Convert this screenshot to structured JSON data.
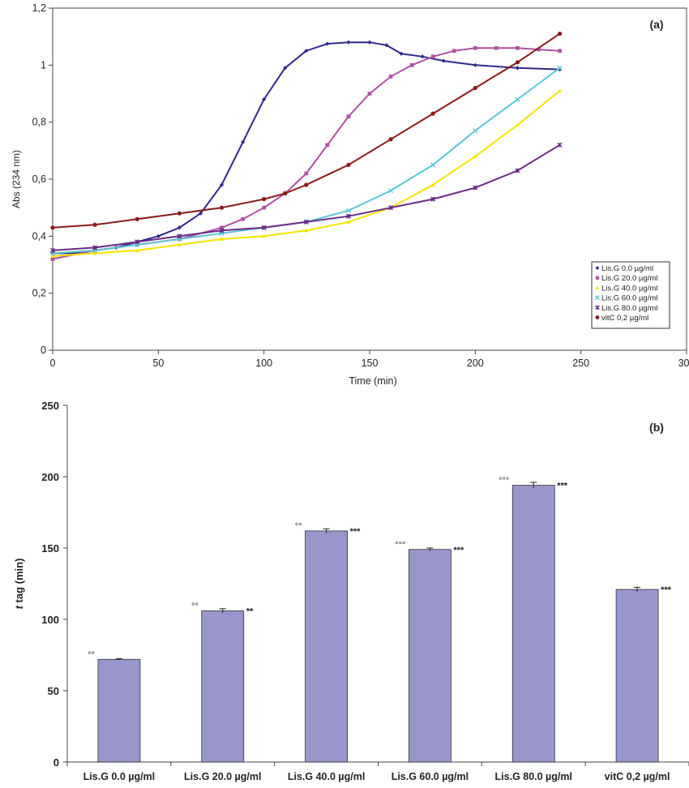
{
  "chart_data": [
    {
      "type": "line",
      "panel_label": "(a)",
      "xlabel": "Time (min)",
      "ylabel": "Abs (234 nm)",
      "xlim": [
        0,
        300
      ],
      "ylim": [
        0,
        1.2
      ],
      "x_ticks": [
        "0",
        "50",
        "100",
        "150",
        "200",
        "250",
        "300"
      ],
      "y_ticks": [
        "0",
        "0,2",
        "0,4",
        "0,6",
        "0,8",
        "1",
        "1,2"
      ],
      "legend_position": "bottom-right",
      "series": [
        {
          "name": "Lis.G 0.0 µg/ml",
          "color": "#2e2a8a",
          "marker": "diamond",
          "x": [
            0,
            10,
            20,
            30,
            40,
            50,
            60,
            70,
            80,
            90,
            100,
            110,
            120,
            130,
            140,
            150,
            158,
            165,
            175,
            185,
            200,
            220,
            240
          ],
          "y": [
            0.34,
            0.34,
            0.35,
            0.36,
            0.38,
            0.4,
            0.43,
            0.48,
            0.58,
            0.73,
            0.88,
            0.99,
            1.05,
            1.075,
            1.08,
            1.08,
            1.07,
            1.04,
            1.03,
            1.015,
            1.0,
            0.99,
            0.985
          ]
        },
        {
          "name": "Lis.G 20.0 µg/ml",
          "color": "#b04fa4",
          "marker": "square",
          "x": [
            0,
            20,
            40,
            60,
            80,
            90,
            100,
            110,
            120,
            130,
            140,
            150,
            160,
            170,
            180,
            190,
            200,
            210,
            220,
            230,
            240
          ],
          "y": [
            0.32,
            0.35,
            0.37,
            0.39,
            0.43,
            0.46,
            0.5,
            0.55,
            0.62,
            0.72,
            0.82,
            0.9,
            0.96,
            1.0,
            1.03,
            1.05,
            1.06,
            1.06,
            1.06,
            1.055,
            1.05
          ]
        },
        {
          "name": "Lis.G 40.0 µg/ml",
          "color": "#f5e400",
          "marker": "triangle",
          "x": [
            0,
            20,
            40,
            60,
            80,
            100,
            120,
            140,
            160,
            180,
            200,
            220,
            240
          ],
          "y": [
            0.33,
            0.34,
            0.35,
            0.37,
            0.39,
            0.4,
            0.42,
            0.45,
            0.5,
            0.58,
            0.68,
            0.79,
            0.91
          ]
        },
        {
          "name": "Lis.G 60.0 µg/ml",
          "color": "#59c7d4",
          "marker": "x",
          "x": [
            0,
            20,
            40,
            60,
            80,
            100,
            120,
            140,
            160,
            180,
            200,
            220,
            240
          ],
          "y": [
            0.34,
            0.35,
            0.37,
            0.39,
            0.41,
            0.43,
            0.45,
            0.49,
            0.56,
            0.65,
            0.77,
            0.88,
            0.99
          ]
        },
        {
          "name": "Lis.G 80.0 µg/ml",
          "color": "#6a2a86",
          "marker": "star",
          "x": [
            0,
            20,
            40,
            60,
            80,
            100,
            120,
            140,
            160,
            180,
            200,
            220,
            240
          ],
          "y": [
            0.35,
            0.36,
            0.38,
            0.4,
            0.42,
            0.43,
            0.45,
            0.47,
            0.5,
            0.53,
            0.57,
            0.63,
            0.72
          ]
        },
        {
          "name": "vitC 0,2 µg/ml",
          "color": "#8b1a1a",
          "marker": "circle",
          "x": [
            0,
            20,
            40,
            60,
            80,
            100,
            110,
            120,
            140,
            160,
            180,
            200,
            220,
            240
          ],
          "y": [
            0.43,
            0.44,
            0.46,
            0.48,
            0.5,
            0.53,
            0.55,
            0.58,
            0.65,
            0.74,
            0.83,
            0.92,
            1.01,
            1.11
          ]
        }
      ]
    },
    {
      "type": "bar",
      "panel_label": "(b)",
      "ylabel_italic": "t",
      "ylabel_rest": " tag (min)",
      "ylim": [
        0,
        250
      ],
      "y_ticks": [
        "0",
        "50",
        "100",
        "150",
        "200",
        "250"
      ],
      "bar_color": "#9896cb",
      "categories": [
        "Lis.G 0.0 µg/ml",
        "Lis.G 20.0 µg/ml",
        "Lis.G 40.0 µg/ml",
        "Lis.G 60.0 µg/ml",
        "Lis.G 80.0 µg/ml",
        "vitC 0,2 µg/ml"
      ],
      "values": [
        72,
        106,
        162,
        149,
        194,
        121
      ],
      "errors": [
        0.5,
        1.5,
        1.5,
        1,
        2,
        1.5
      ],
      "left_marks": [
        "°°",
        "°°",
        "°°",
        "°°°",
        "°°°",
        ""
      ],
      "right_marks": [
        "",
        "**",
        "***",
        "***",
        "***",
        "***"
      ]
    }
  ]
}
